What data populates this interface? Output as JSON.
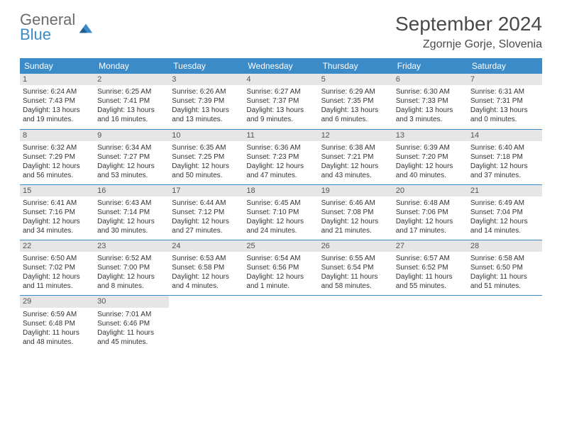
{
  "logo": {
    "line1": "General",
    "line2": "Blue"
  },
  "title": "September 2024",
  "location": "Zgornje Gorje, Slovenia",
  "colors": {
    "header_bg": "#3b8bc9",
    "daynum_bg": "#e6e6e6",
    "border": "#3b8bc9",
    "text": "#333333"
  },
  "day_names": [
    "Sunday",
    "Monday",
    "Tuesday",
    "Wednesday",
    "Thursday",
    "Friday",
    "Saturday"
  ],
  "weeks": [
    [
      {
        "n": "1",
        "sr": "Sunrise: 6:24 AM",
        "ss": "Sunset: 7:43 PM",
        "dl": "Daylight: 13 hours and 19 minutes."
      },
      {
        "n": "2",
        "sr": "Sunrise: 6:25 AM",
        "ss": "Sunset: 7:41 PM",
        "dl": "Daylight: 13 hours and 16 minutes."
      },
      {
        "n": "3",
        "sr": "Sunrise: 6:26 AM",
        "ss": "Sunset: 7:39 PM",
        "dl": "Daylight: 13 hours and 13 minutes."
      },
      {
        "n": "4",
        "sr": "Sunrise: 6:27 AM",
        "ss": "Sunset: 7:37 PM",
        "dl": "Daylight: 13 hours and 9 minutes."
      },
      {
        "n": "5",
        "sr": "Sunrise: 6:29 AM",
        "ss": "Sunset: 7:35 PM",
        "dl": "Daylight: 13 hours and 6 minutes."
      },
      {
        "n": "6",
        "sr": "Sunrise: 6:30 AM",
        "ss": "Sunset: 7:33 PM",
        "dl": "Daylight: 13 hours and 3 minutes."
      },
      {
        "n": "7",
        "sr": "Sunrise: 6:31 AM",
        "ss": "Sunset: 7:31 PM",
        "dl": "Daylight: 13 hours and 0 minutes."
      }
    ],
    [
      {
        "n": "8",
        "sr": "Sunrise: 6:32 AM",
        "ss": "Sunset: 7:29 PM",
        "dl": "Daylight: 12 hours and 56 minutes."
      },
      {
        "n": "9",
        "sr": "Sunrise: 6:34 AM",
        "ss": "Sunset: 7:27 PM",
        "dl": "Daylight: 12 hours and 53 minutes."
      },
      {
        "n": "10",
        "sr": "Sunrise: 6:35 AM",
        "ss": "Sunset: 7:25 PM",
        "dl": "Daylight: 12 hours and 50 minutes."
      },
      {
        "n": "11",
        "sr": "Sunrise: 6:36 AM",
        "ss": "Sunset: 7:23 PM",
        "dl": "Daylight: 12 hours and 47 minutes."
      },
      {
        "n": "12",
        "sr": "Sunrise: 6:38 AM",
        "ss": "Sunset: 7:21 PM",
        "dl": "Daylight: 12 hours and 43 minutes."
      },
      {
        "n": "13",
        "sr": "Sunrise: 6:39 AM",
        "ss": "Sunset: 7:20 PM",
        "dl": "Daylight: 12 hours and 40 minutes."
      },
      {
        "n": "14",
        "sr": "Sunrise: 6:40 AM",
        "ss": "Sunset: 7:18 PM",
        "dl": "Daylight: 12 hours and 37 minutes."
      }
    ],
    [
      {
        "n": "15",
        "sr": "Sunrise: 6:41 AM",
        "ss": "Sunset: 7:16 PM",
        "dl": "Daylight: 12 hours and 34 minutes."
      },
      {
        "n": "16",
        "sr": "Sunrise: 6:43 AM",
        "ss": "Sunset: 7:14 PM",
        "dl": "Daylight: 12 hours and 30 minutes."
      },
      {
        "n": "17",
        "sr": "Sunrise: 6:44 AM",
        "ss": "Sunset: 7:12 PM",
        "dl": "Daylight: 12 hours and 27 minutes."
      },
      {
        "n": "18",
        "sr": "Sunrise: 6:45 AM",
        "ss": "Sunset: 7:10 PM",
        "dl": "Daylight: 12 hours and 24 minutes."
      },
      {
        "n": "19",
        "sr": "Sunrise: 6:46 AM",
        "ss": "Sunset: 7:08 PM",
        "dl": "Daylight: 12 hours and 21 minutes."
      },
      {
        "n": "20",
        "sr": "Sunrise: 6:48 AM",
        "ss": "Sunset: 7:06 PM",
        "dl": "Daylight: 12 hours and 17 minutes."
      },
      {
        "n": "21",
        "sr": "Sunrise: 6:49 AM",
        "ss": "Sunset: 7:04 PM",
        "dl": "Daylight: 12 hours and 14 minutes."
      }
    ],
    [
      {
        "n": "22",
        "sr": "Sunrise: 6:50 AM",
        "ss": "Sunset: 7:02 PM",
        "dl": "Daylight: 12 hours and 11 minutes."
      },
      {
        "n": "23",
        "sr": "Sunrise: 6:52 AM",
        "ss": "Sunset: 7:00 PM",
        "dl": "Daylight: 12 hours and 8 minutes."
      },
      {
        "n": "24",
        "sr": "Sunrise: 6:53 AM",
        "ss": "Sunset: 6:58 PM",
        "dl": "Daylight: 12 hours and 4 minutes."
      },
      {
        "n": "25",
        "sr": "Sunrise: 6:54 AM",
        "ss": "Sunset: 6:56 PM",
        "dl": "Daylight: 12 hours and 1 minute."
      },
      {
        "n": "26",
        "sr": "Sunrise: 6:55 AM",
        "ss": "Sunset: 6:54 PM",
        "dl": "Daylight: 11 hours and 58 minutes."
      },
      {
        "n": "27",
        "sr": "Sunrise: 6:57 AM",
        "ss": "Sunset: 6:52 PM",
        "dl": "Daylight: 11 hours and 55 minutes."
      },
      {
        "n": "28",
        "sr": "Sunrise: 6:58 AM",
        "ss": "Sunset: 6:50 PM",
        "dl": "Daylight: 11 hours and 51 minutes."
      }
    ],
    [
      {
        "n": "29",
        "sr": "Sunrise: 6:59 AM",
        "ss": "Sunset: 6:48 PM",
        "dl": "Daylight: 11 hours and 48 minutes."
      },
      {
        "n": "30",
        "sr": "Sunrise: 7:01 AM",
        "ss": "Sunset: 6:46 PM",
        "dl": "Daylight: 11 hours and 45 minutes."
      },
      null,
      null,
      null,
      null,
      null
    ]
  ]
}
